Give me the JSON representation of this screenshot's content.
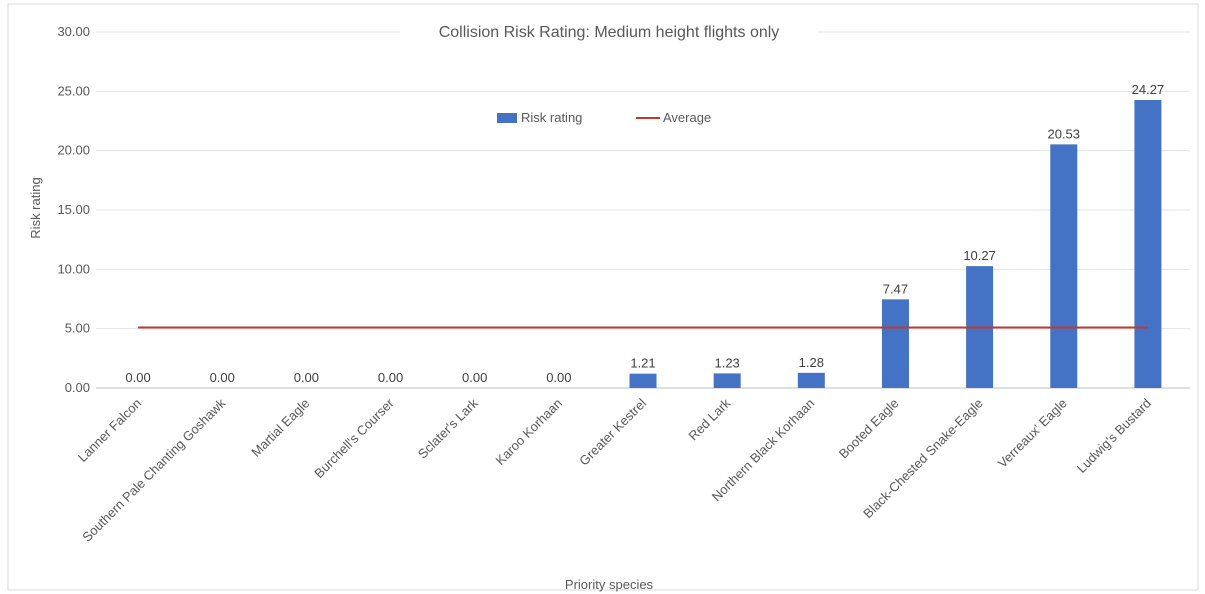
{
  "chart_data": {
    "type": "bar",
    "title": "Collision Risk Rating: Medium height flights only",
    "xlabel": "Priority species",
    "ylabel": "Risk rating",
    "ylim": [
      0,
      30
    ],
    "ytick_step": 5,
    "ytick_labels": [
      "0.00",
      "5.00",
      "10.00",
      "15.00",
      "20.00",
      "25.00",
      "30.00"
    ],
    "grid": true,
    "legend_position": "top-center",
    "categories": [
      "Lanner Falcon",
      "Southern Pale Chanting Goshawk",
      "Martial Eagle",
      "Burchell's Courser",
      "Sclater's Lark",
      "Karoo Korhaan",
      "Greater Kestrel",
      "Red Lark",
      "Northern Black Korhaan",
      "Booted Eagle",
      "Black-Chested Snake-Eagle",
      "Verreaux' Eagle",
      "Ludwig's Bustard"
    ],
    "series": [
      {
        "name": "Risk rating",
        "kind": "bar",
        "color": "#4472c4",
        "values": [
          0.0,
          0.0,
          0.0,
          0.0,
          0.0,
          0.0,
          1.21,
          1.23,
          1.28,
          7.47,
          10.27,
          20.53,
          24.27
        ],
        "labels": [
          "0.00",
          "0.00",
          "0.00",
          "0.00",
          "0.00",
          "0.00",
          "1.21",
          "1.23",
          "1.28",
          "7.47",
          "10.27",
          "20.53",
          "24.27"
        ]
      },
      {
        "name": "Average",
        "kind": "line",
        "color": "#c0392b",
        "values": [
          5.1,
          5.1,
          5.1,
          5.1,
          5.1,
          5.1,
          5.1,
          5.1,
          5.1,
          5.1,
          5.1,
          5.1,
          5.1
        ]
      }
    ]
  }
}
